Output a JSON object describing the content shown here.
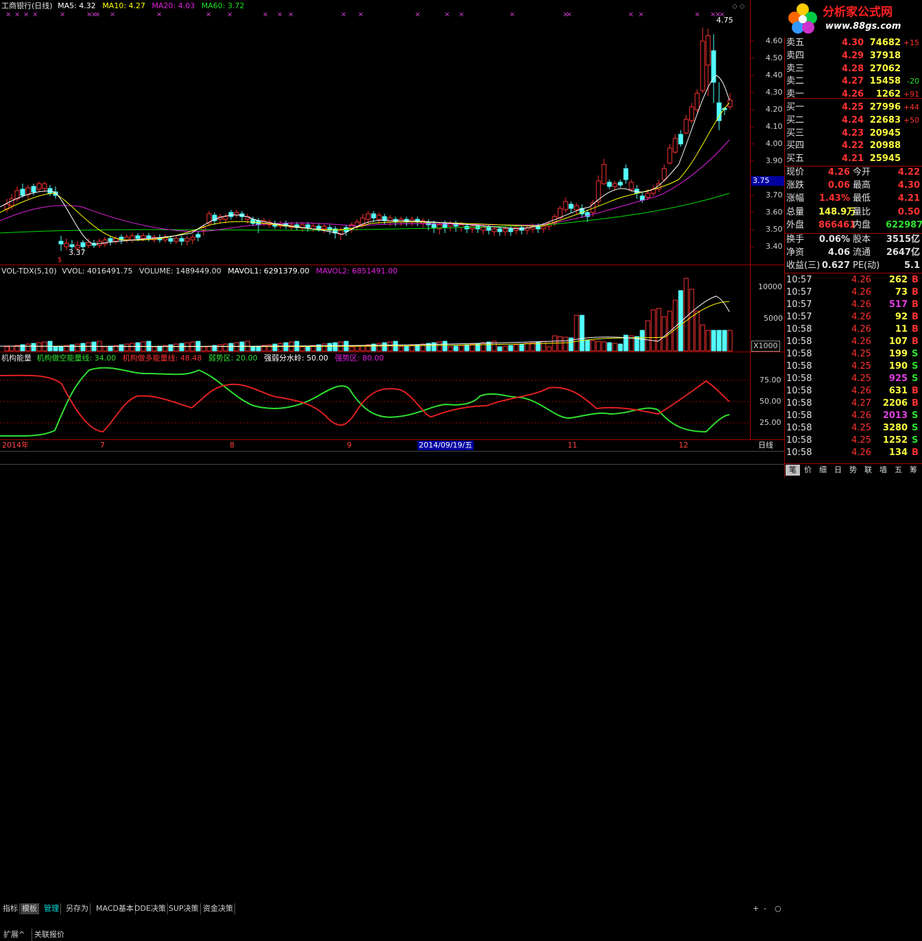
{
  "main_header": {
    "stock": "工商银行(日线)",
    "ma5": "MA5: 4.32",
    "ma10": "MA10: 4.27",
    "ma20": "MA20: 4.03",
    "ma60": "MA60: 3.72"
  },
  "price_axis": [
    "4.60",
    "4.50",
    "4.40",
    "4.30",
    "4.20",
    "4.10",
    "4.00",
    "3.90",
    "3.75",
    "3.70",
    "3.60",
    "3.50",
    "3.40"
  ],
  "high_label": "4.75",
  "low_label": "3.37",
  "cursor_price": "3.75",
  "vol_header": {
    "name": "VOL-TDX(5,10)",
    "vvol": "VVOL: 4016491.75",
    "volume": "VOLUME: 1489449.00",
    "mavol1": "MAVOL1: 6291379.00",
    "mavol2": "MAVOL2: 6851491.00"
  },
  "vol_axis": [
    "10000",
    "5000"
  ],
  "vol_unit": "X1000",
  "ind_header": {
    "name": "机构能量",
    "line1": "机构做空能量线: 34.00",
    "line2": "机构做多能量线: 48.48",
    "weak": "弱势区: 20.00",
    "mid": "强弱分水岭: 50.00",
    "strong": "强势区: 80.00"
  },
  "ind_axis": [
    "75.00",
    "50.00",
    "25.00"
  ],
  "date_axis": {
    "year": "2014年",
    "m7": "7",
    "m8": "8",
    "m9": "9",
    "cursor": "2014/09/19/五",
    "m11": "11",
    "m12": "12"
  },
  "period": "日线",
  "toolbar": [
    "指标",
    "模板",
    "管理",
    "另存为",
    "MACD基本",
    "DDE决策",
    "SUP决策",
    "资金决策"
  ],
  "toolbar2": [
    "扩展^",
    "关联报价"
  ],
  "zoom_buttons": [
    "+",
    "-",
    "○"
  ],
  "logo": {
    "text": "分析家公式网",
    "url": "www.88gs.com"
  },
  "order_book": [
    {
      "label": "卖五",
      "price": "4.30",
      "vol": "74682",
      "chg": "+15"
    },
    {
      "label": "卖四",
      "price": "4.29",
      "vol": "37918",
      "chg": ""
    },
    {
      "label": "卖三",
      "price": "4.28",
      "vol": "27062",
      "chg": ""
    },
    {
      "label": "卖二",
      "price": "4.27",
      "vol": "15458",
      "chg": "-20"
    },
    {
      "label": "卖一",
      "price": "4.26",
      "vol": "1262",
      "chg": "+91"
    },
    {
      "label": "买一",
      "price": "4.25",
      "vol": "27996",
      "chg": "+44"
    },
    {
      "label": "买二",
      "price": "4.24",
      "vol": "22683",
      "chg": "+50"
    },
    {
      "label": "买三",
      "price": "4.23",
      "vol": "20945",
      "chg": ""
    },
    {
      "label": "买四",
      "price": "4.22",
      "vol": "20988",
      "chg": ""
    },
    {
      "label": "买五",
      "price": "4.21",
      "vol": "25945",
      "chg": ""
    }
  ],
  "stats": [
    {
      "k1": "现价",
      "v1": "4.26",
      "k2": "今开",
      "v2": "4.22"
    },
    {
      "k1": "涨跌",
      "v1": "0.06",
      "k2": "最高",
      "v2": "4.30"
    },
    {
      "k1": "涨幅",
      "v1": "1.43%",
      "k2": "最低",
      "v2": "4.21"
    },
    {
      "k1": "总量",
      "v1": "148.9万",
      "k2": "量比",
      "v2": "0.50"
    },
    {
      "k1": "外盘",
      "v1": "866461",
      "k2": "内盘",
      "v2": "622987"
    },
    {
      "k1": "换手",
      "v1": "0.06%",
      "k2": "股本",
      "v2": "3515亿"
    },
    {
      "k1": "净资",
      "v1": "4.06",
      "k2": "流通",
      "v2": "2647亿"
    },
    {
      "k1": "收益(三)",
      "v1": "0.627",
      "k2": "PE(动)",
      "v2": "5.1"
    }
  ],
  "ticks": [
    {
      "time": "10:57",
      "price": "4.26",
      "vol": "262",
      "side": "B"
    },
    {
      "time": "10:57",
      "price": "4.26",
      "vol": "73",
      "side": "B"
    },
    {
      "time": "10:57",
      "price": "4.26",
      "vol": "517",
      "side": "B"
    },
    {
      "time": "10:57",
      "price": "4.26",
      "vol": "92",
      "side": "B"
    },
    {
      "time": "10:58",
      "price": "4.26",
      "vol": "11",
      "side": "B"
    },
    {
      "time": "10:58",
      "price": "4.26",
      "vol": "107",
      "side": "B"
    },
    {
      "time": "10:58",
      "price": "4.25",
      "vol": "199",
      "side": "S"
    },
    {
      "time": "10:58",
      "price": "4.25",
      "vol": "190",
      "side": "S"
    },
    {
      "time": "10:58",
      "price": "4.25",
      "vol": "925",
      "side": "S"
    },
    {
      "time": "10:58",
      "price": "4.26",
      "vol": "631",
      "side": "B"
    },
    {
      "time": "10:58",
      "price": "4.27",
      "vol": "2206",
      "side": "B"
    },
    {
      "time": "10:58",
      "price": "4.26",
      "vol": "2013",
      "side": "S"
    },
    {
      "time": "10:58",
      "price": "4.25",
      "vol": "3280",
      "side": "S"
    },
    {
      "time": "10:58",
      "price": "4.25",
      "vol": "1252",
      "side": "S"
    },
    {
      "time": "10:58",
      "price": "4.26",
      "vol": "134",
      "side": "B"
    }
  ],
  "bottom_tabs": [
    "笔",
    "价",
    "细",
    "日",
    "势",
    "联",
    "墙",
    "五",
    "筹"
  ],
  "colors": {
    "up": "#ff3232",
    "down": "#54ffff",
    "ma5": "#ffffff",
    "ma10": "#ffff00",
    "ma20": "#ff00ff",
    "ma60": "#00e000",
    "frame": "#a00000"
  }
}
